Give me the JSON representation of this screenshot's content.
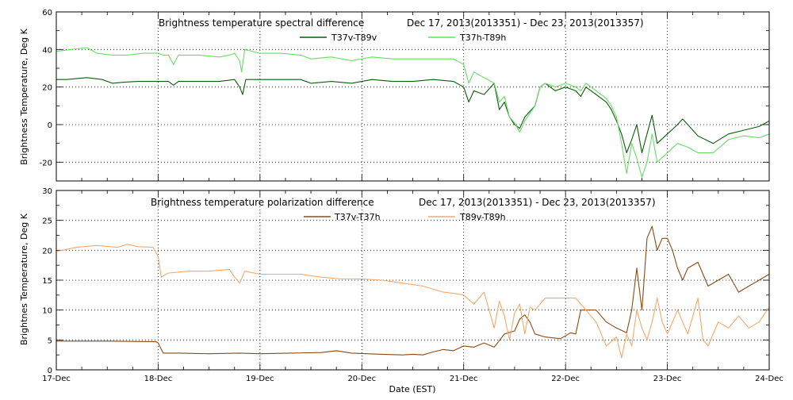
{
  "chart_data": [
    {
      "type": "line",
      "title": "Brightness temperature spectral difference",
      "date_range": "Dec 17, 2013(2013351) - Dec 23, 2013(2013357)",
      "ylabel": "Brightness Temperature, Deg K",
      "xlabel": "",
      "ylim": [
        -30,
        60
      ],
      "xlim": [
        0,
        7
      ],
      "yticks": [
        "-20",
        "0",
        "20",
        "40",
        "60"
      ],
      "ytick_values": [
        -20,
        0,
        20,
        40,
        60
      ],
      "grid": true,
      "legend_placement": "top-center",
      "series": [
        {
          "name": "T37v-T89v",
          "color": "#0a5c0a",
          "points": [
            [
              0.0,
              24
            ],
            [
              0.1,
              24
            ],
            [
              0.3,
              25
            ],
            [
              0.45,
              24
            ],
            [
              0.55,
              22
            ],
            [
              0.65,
              22.5
            ],
            [
              0.8,
              23
            ],
            [
              1.0,
              23
            ],
            [
              1.1,
              23
            ],
            [
              1.15,
              21
            ],
            [
              1.2,
              23
            ],
            [
              1.4,
              23
            ],
            [
              1.6,
              23
            ],
            [
              1.75,
              24
            ],
            [
              1.8,
              20
            ],
            [
              1.83,
              16
            ],
            [
              1.86,
              24
            ],
            [
              2.0,
              24
            ],
            [
              2.2,
              24
            ],
            [
              2.4,
              24
            ],
            [
              2.5,
              22
            ],
            [
              2.7,
              23
            ],
            [
              2.9,
              22
            ],
            [
              3.1,
              24
            ],
            [
              3.3,
              23
            ],
            [
              3.5,
              23
            ],
            [
              3.7,
              24
            ],
            [
              3.9,
              23
            ],
            [
              4.0,
              20
            ],
            [
              4.05,
              12
            ],
            [
              4.1,
              18
            ],
            [
              4.2,
              16
            ],
            [
              4.3,
              22
            ],
            [
              4.35,
              8
            ],
            [
              4.4,
              12
            ],
            [
              4.45,
              4
            ],
            [
              4.5,
              0
            ],
            [
              4.55,
              -2
            ],
            [
              4.6,
              4
            ],
            [
              4.7,
              10
            ],
            [
              4.75,
              20
            ],
            [
              4.8,
              22
            ],
            [
              4.9,
              18
            ],
            [
              5.0,
              20
            ],
            [
              5.1,
              18
            ],
            [
              5.15,
              15
            ],
            [
              5.2,
              20
            ],
            [
              5.3,
              16
            ],
            [
              5.35,
              14
            ],
            [
              5.4,
              12
            ],
            [
              5.45,
              8
            ],
            [
              5.5,
              2
            ],
            [
              5.55,
              -5
            ],
            [
              5.6,
              -15
            ],
            [
              5.65,
              -8
            ],
            [
              5.7,
              0
            ],
            [
              5.75,
              -15
            ],
            [
              5.8,
              -5
            ],
            [
              5.85,
              5
            ],
            [
              5.9,
              -10
            ],
            [
              6.0,
              -5
            ],
            [
              6.1,
              0
            ],
            [
              6.15,
              3
            ],
            [
              6.2,
              0
            ],
            [
              6.3,
              -6
            ],
            [
              6.45,
              -10
            ],
            [
              6.6,
              -5
            ],
            [
              6.75,
              -3
            ],
            [
              6.9,
              -1
            ],
            [
              7.0,
              2
            ]
          ]
        },
        {
          "name": "T37h-T89h",
          "color": "#66dd66",
          "points": [
            [
              0.0,
              39
            ],
            [
              0.15,
              40
            ],
            [
              0.3,
              41
            ],
            [
              0.4,
              38
            ],
            [
              0.55,
              37
            ],
            [
              0.7,
              37
            ],
            [
              0.85,
              38
            ],
            [
              1.0,
              38
            ],
            [
              1.05,
              37
            ],
            [
              1.1,
              37
            ],
            [
              1.15,
              32
            ],
            [
              1.2,
              37
            ],
            [
              1.4,
              37
            ],
            [
              1.6,
              36
            ],
            [
              1.7,
              37
            ],
            [
              1.75,
              38
            ],
            [
              1.8,
              34
            ],
            [
              1.82,
              28
            ],
            [
              1.85,
              40
            ],
            [
              2.0,
              38
            ],
            [
              2.2,
              38
            ],
            [
              2.4,
              37
            ],
            [
              2.5,
              35
            ],
            [
              2.7,
              36
            ],
            [
              2.9,
              34
            ],
            [
              3.1,
              36
            ],
            [
              3.3,
              35
            ],
            [
              3.5,
              35
            ],
            [
              3.7,
              35
            ],
            [
              3.9,
              35
            ],
            [
              4.0,
              32
            ],
            [
              4.05,
              22
            ],
            [
              4.1,
              28
            ],
            [
              4.2,
              25
            ],
            [
              4.3,
              22
            ],
            [
              4.35,
              12
            ],
            [
              4.4,
              15
            ],
            [
              4.45,
              4
            ],
            [
              4.5,
              1
            ],
            [
              4.55,
              -4
            ],
            [
              4.6,
              2
            ],
            [
              4.7,
              10
            ],
            [
              4.75,
              20
            ],
            [
              4.8,
              22
            ],
            [
              4.9,
              20
            ],
            [
              5.0,
              22
            ],
            [
              5.1,
              20
            ],
            [
              5.15,
              18
            ],
            [
              5.2,
              22
            ],
            [
              5.3,
              18
            ],
            [
              5.35,
              16
            ],
            [
              5.4,
              14
            ],
            [
              5.45,
              10
            ],
            [
              5.5,
              4
            ],
            [
              5.55,
              -10
            ],
            [
              5.6,
              -26
            ],
            [
              5.65,
              -10
            ],
            [
              5.7,
              -18
            ],
            [
              5.75,
              -28
            ],
            [
              5.8,
              -20
            ],
            [
              5.85,
              -5
            ],
            [
              5.9,
              -20
            ],
            [
              6.0,
              -15
            ],
            [
              6.1,
              -10
            ],
            [
              6.2,
              -12
            ],
            [
              6.3,
              -15
            ],
            [
              6.45,
              -15
            ],
            [
              6.6,
              -8
            ],
            [
              6.75,
              -6
            ],
            [
              6.9,
              -7
            ],
            [
              7.0,
              -5
            ]
          ]
        }
      ]
    },
    {
      "type": "line",
      "title": "Brightness temperature polarization difference",
      "date_range": "Dec 17, 2013(2013351) - Dec 23, 2013(2013357)",
      "ylabel": "Brightnes Temperature, Deg K",
      "xlabel": "Date (EST)",
      "ylim": [
        0,
        30
      ],
      "xlim": [
        0,
        7
      ],
      "yticks": [
        "0",
        "5",
        "10",
        "15",
        "20",
        "25",
        "30"
      ],
      "ytick_values": [
        0,
        5,
        10,
        15,
        20,
        25,
        30
      ],
      "xticks": [
        "17-Dec",
        "18-Dec",
        "19-Dec",
        "20-Dec",
        "21-Dec",
        "22-Dec",
        "23-Dec",
        "24-Dec"
      ],
      "xtick_values": [
        0,
        1,
        2,
        3,
        4,
        5,
        6,
        7
      ],
      "grid": true,
      "legend_placement": "top-center",
      "series": [
        {
          "name": "T37v-T37h",
          "color": "#8b4a12",
          "points": [
            [
              0.0,
              4.8
            ],
            [
              0.5,
              4.8
            ],
            [
              0.98,
              4.7
            ],
            [
              1.0,
              4.5
            ],
            [
              1.05,
              2.8
            ],
            [
              1.2,
              2.8
            ],
            [
              1.5,
              2.7
            ],
            [
              1.8,
              2.8
            ],
            [
              2.0,
              2.7
            ],
            [
              2.3,
              2.8
            ],
            [
              2.6,
              2.9
            ],
            [
              2.75,
              3.2
            ],
            [
              2.9,
              2.8
            ],
            [
              3.2,
              2.6
            ],
            [
              3.4,
              2.5
            ],
            [
              3.5,
              2.6
            ],
            [
              3.6,
              2.5
            ],
            [
              3.7,
              3.0
            ],
            [
              3.8,
              3.4
            ],
            [
              3.9,
              3.2
            ],
            [
              4.0,
              4.0
            ],
            [
              4.1,
              3.8
            ],
            [
              4.2,
              4.5
            ],
            [
              4.3,
              3.8
            ],
            [
              4.4,
              6.0
            ],
            [
              4.5,
              6.5
            ],
            [
              4.55,
              8.5
            ],
            [
              4.6,
              9.2
            ],
            [
              4.65,
              8.0
            ],
            [
              4.7,
              6.0
            ],
            [
              4.8,
              5.5
            ],
            [
              4.95,
              5.2
            ],
            [
              5.05,
              6.2
            ],
            [
              5.1,
              6.0
            ],
            [
              5.15,
              10.0
            ],
            [
              5.3,
              10.0
            ],
            [
              5.4,
              8.0
            ],
            [
              5.5,
              7.0
            ],
            [
              5.6,
              6.2
            ],
            [
              5.65,
              10
            ],
            [
              5.7,
              17
            ],
            [
              5.75,
              10
            ],
            [
              5.8,
              22
            ],
            [
              5.85,
              24
            ],
            [
              5.9,
              20
            ],
            [
              5.95,
              22
            ],
            [
              6.0,
              22
            ],
            [
              6.05,
              20
            ],
            [
              6.1,
              17
            ],
            [
              6.15,
              15
            ],
            [
              6.2,
              17
            ],
            [
              6.3,
              18
            ],
            [
              6.4,
              14
            ],
            [
              6.5,
              15
            ],
            [
              6.6,
              16
            ],
            [
              6.7,
              13
            ],
            [
              6.8,
              14
            ],
            [
              6.9,
              15
            ],
            [
              7.0,
              16
            ]
          ]
        },
        {
          "name": "T89v-T89h",
          "color": "#f5a86a",
          "points": [
            [
              0.0,
              19.8
            ],
            [
              0.2,
              20.5
            ],
            [
              0.4,
              20.8
            ],
            [
              0.6,
              20.5
            ],
            [
              0.7,
              21.0
            ],
            [
              0.8,
              20.6
            ],
            [
              0.95,
              20.5
            ],
            [
              1.0,
              19.0
            ],
            [
              1.03,
              15.5
            ],
            [
              1.1,
              16.2
            ],
            [
              1.3,
              16.5
            ],
            [
              1.5,
              16.5
            ],
            [
              1.7,
              16.8
            ],
            [
              1.75,
              15.5
            ],
            [
              1.8,
              14.5
            ],
            [
              1.85,
              16.5
            ],
            [
              2.0,
              16.0
            ],
            [
              2.2,
              16.0
            ],
            [
              2.4,
              16.0
            ],
            [
              2.6,
              15.5
            ],
            [
              2.8,
              15.2
            ],
            [
              3.0,
              15.2
            ],
            [
              3.2,
              15.0
            ],
            [
              3.4,
              14.5
            ],
            [
              3.6,
              14.0
            ],
            [
              3.8,
              13.0
            ],
            [
              3.9,
              12.8
            ],
            [
              4.0,
              12.5
            ],
            [
              4.1,
              11.0
            ],
            [
              4.2,
              13.0
            ],
            [
              4.3,
              7.0
            ],
            [
              4.35,
              11.5
            ],
            [
              4.4,
              9.0
            ],
            [
              4.45,
              5.0
            ],
            [
              4.5,
              9.5
            ],
            [
              4.55,
              11.0
            ],
            [
              4.6,
              6.0
            ],
            [
              4.65,
              10.5
            ],
            [
              4.7,
              10.0
            ],
            [
              4.8,
              12.0
            ],
            [
              4.9,
              12.0
            ],
            [
              5.0,
              12.0
            ],
            [
              5.1,
              12.0
            ],
            [
              5.2,
              10.0
            ],
            [
              5.3,
              8.0
            ],
            [
              5.4,
              4.0
            ],
            [
              5.5,
              5.5
            ],
            [
              5.55,
              2.0
            ],
            [
              5.6,
              6.0
            ],
            [
              5.65,
              4.0
            ],
            [
              5.7,
              10.0
            ],
            [
              5.75,
              7.0
            ],
            [
              5.8,
              5.0
            ],
            [
              5.85,
              8.0
            ],
            [
              5.9,
              12.0
            ],
            [
              5.95,
              8.0
            ],
            [
              6.0,
              6.0
            ],
            [
              6.05,
              8.0
            ],
            [
              6.1,
              10.0
            ],
            [
              6.2,
              6.0
            ],
            [
              6.3,
              12.0
            ],
            [
              6.35,
              5.0
            ],
            [
              6.4,
              4.0
            ],
            [
              6.5,
              8.0
            ],
            [
              6.6,
              7.0
            ],
            [
              6.7,
              9.0
            ],
            [
              6.8,
              7.0
            ],
            [
              6.9,
              8.0
            ],
            [
              7.0,
              10.5
            ]
          ]
        }
      ]
    }
  ]
}
